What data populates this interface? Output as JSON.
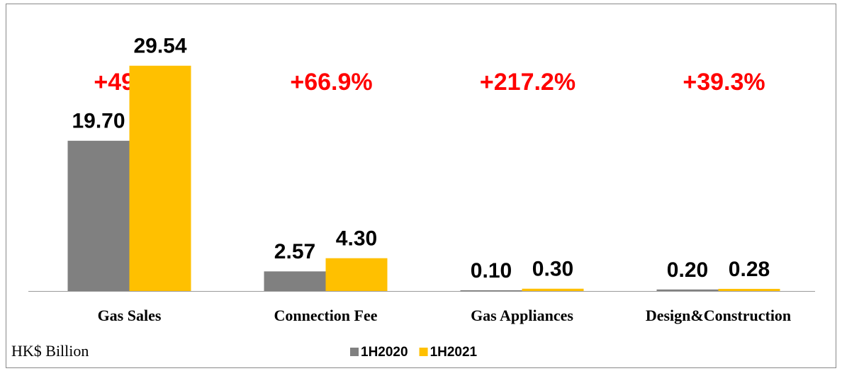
{
  "chart_data": {
    "type": "bar",
    "categories": [
      "Gas Sales",
      "Connection Fee",
      "Gas Appliances",
      "Design&Construction"
    ],
    "series": [
      {
        "name": "1H2020",
        "color": "#808080",
        "values": [
          19.7,
          2.57,
          0.1,
          0.2
        ],
        "value_labels": [
          "19.70",
          "2.57",
          "0.10",
          "0.20"
        ]
      },
      {
        "name": "1H2021",
        "color": "#ffc000",
        "values": [
          29.54,
          4.3,
          0.3,
          0.28
        ],
        "value_labels": [
          "29.54",
          "4.30",
          "0.30",
          "0.28"
        ]
      }
    ],
    "annotations": [
      "+49.9%",
      "+66.9%",
      "+217.2%",
      "+39.3%"
    ],
    "unit_label": "HK$ Billion",
    "ylim": [
      0,
      35
    ],
    "legend": "bottom"
  }
}
